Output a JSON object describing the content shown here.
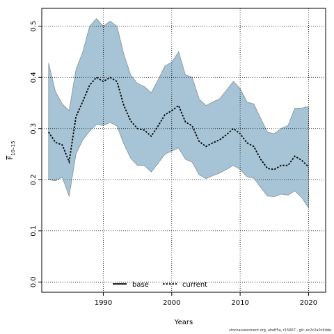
{
  "footer_text": "stockassessment.org, atwff5a, r15667 , git: ec2c2a0c6dde",
  "chart_data": {
    "type": "area",
    "xlabel": "Years",
    "ylabel_base": "F",
    "ylabel_sub": "10–15",
    "xlim": [
      1981,
      2022.5
    ],
    "ylim": [
      -0.02,
      0.535
    ],
    "xticks": [
      1990,
      2000,
      2010,
      2020
    ],
    "yticks": [
      0.0,
      0.1,
      0.2,
      0.3,
      0.4,
      0.5
    ],
    "ytick_labels": [
      "0.0",
      "0.1",
      "0.2",
      "0.3",
      "0.4",
      "0.5"
    ],
    "grid": true,
    "legend_position": "bottom-center",
    "colors": {
      "band_fill": "#a6c4d6",
      "band_stroke": "#7f8f99",
      "base": "#000000",
      "current": "#000000"
    },
    "x": [
      1982,
      1983,
      1984,
      1985,
      1986,
      1987,
      1988,
      1989,
      1990,
      1991,
      1992,
      1993,
      1994,
      1995,
      1996,
      1997,
      1998,
      1999,
      2000,
      2001,
      2002,
      2003,
      2004,
      2005,
      2006,
      2007,
      2008,
      2009,
      2010,
      2011,
      2012,
      2013,
      2014,
      2015,
      2016,
      2017,
      2018,
      2019,
      2020
    ],
    "upper": [
      0.428,
      0.372,
      0.348,
      0.335,
      0.415,
      0.45,
      0.5,
      0.515,
      0.5,
      0.51,
      0.5,
      0.445,
      0.405,
      0.388,
      0.382,
      0.37,
      0.395,
      0.422,
      0.43,
      0.45,
      0.405,
      0.4,
      0.358,
      0.345,
      0.352,
      0.358,
      0.375,
      0.392,
      0.378,
      0.352,
      0.348,
      0.32,
      0.293,
      0.29,
      0.3,
      0.306,
      0.34,
      0.34,
      0.343
    ],
    "lower": [
      0.2,
      0.198,
      0.205,
      0.168,
      0.25,
      0.278,
      0.295,
      0.308,
      0.306,
      0.312,
      0.305,
      0.27,
      0.242,
      0.228,
      0.228,
      0.215,
      0.232,
      0.25,
      0.256,
      0.262,
      0.24,
      0.234,
      0.21,
      0.202,
      0.208,
      0.213,
      0.22,
      0.228,
      0.22,
      0.206,
      0.203,
      0.185,
      0.168,
      0.167,
      0.172,
      0.17,
      0.178,
      0.165,
      0.145
    ],
    "series": [
      {
        "name": "base",
        "style": "solid",
        "values": [
          0.293,
          0.273,
          0.268,
          0.235,
          0.323,
          0.353,
          0.385,
          0.4,
          0.392,
          0.4,
          0.392,
          0.345,
          0.315,
          0.3,
          0.297,
          0.285,
          0.305,
          0.327,
          0.335,
          0.345,
          0.313,
          0.305,
          0.275,
          0.265,
          0.272,
          0.278,
          0.288,
          0.3,
          0.29,
          0.272,
          0.265,
          0.24,
          0.222,
          0.22,
          0.228,
          0.228,
          0.246,
          0.238,
          0.225
        ]
      },
      {
        "name": "current",
        "style": "dotted",
        "values": [
          0.293,
          0.273,
          0.268,
          0.235,
          0.323,
          0.353,
          0.385,
          0.4,
          0.392,
          0.4,
          0.392,
          0.345,
          0.315,
          0.3,
          0.297,
          0.285,
          0.305,
          0.327,
          0.335,
          0.345,
          0.313,
          0.305,
          0.275,
          0.265,
          0.272,
          0.278,
          0.288,
          0.3,
          0.29,
          0.272,
          0.265,
          0.24,
          0.222,
          0.22,
          0.228,
          0.228,
          0.246,
          0.238,
          0.225
        ]
      }
    ]
  }
}
